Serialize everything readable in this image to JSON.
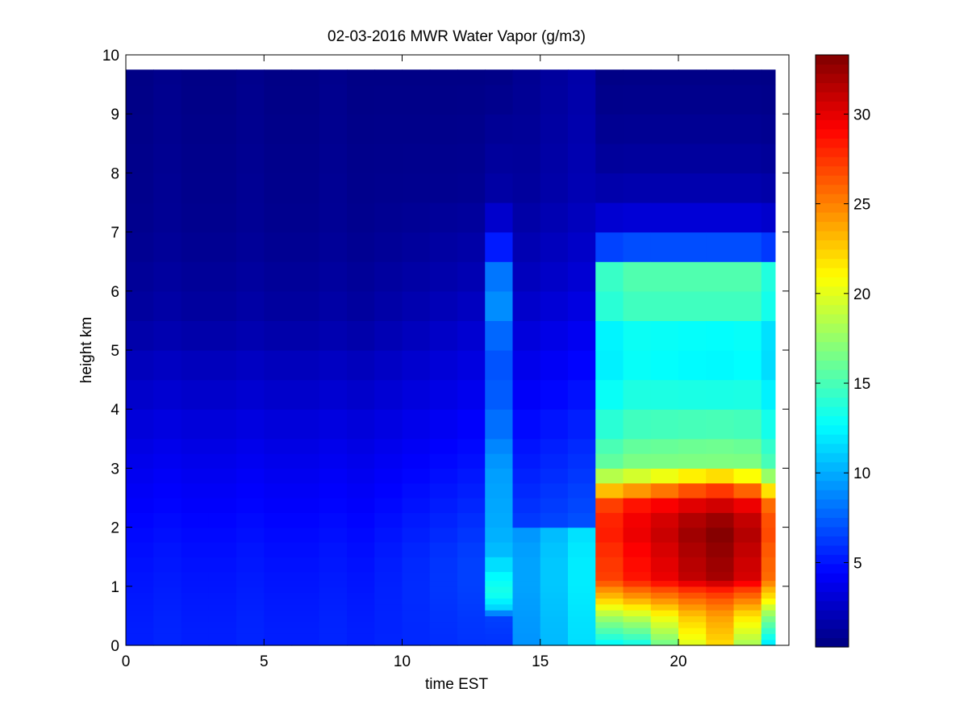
{
  "chart_data": {
    "type": "heatmap",
    "title": "02-03-2016 MWR Water Vapor (g/m3)",
    "xlabel": "time EST",
    "ylabel": "height km",
    "xlim": [
      0,
      24
    ],
    "ylim": [
      0,
      10
    ],
    "xticks": [
      0,
      5,
      10,
      15,
      20
    ],
    "yticks": [
      0,
      1,
      2,
      3,
      4,
      5,
      6,
      7,
      8,
      9,
      10
    ],
    "colormap": "jet",
    "colorbar": {
      "range": [
        0.3,
        33.3
      ],
      "ticks": [
        5,
        10,
        15,
        20,
        25,
        30
      ]
    },
    "data_extent": {
      "x": [
        0,
        23.5
      ],
      "y": [
        0,
        9.75
      ]
    },
    "time_bins": [
      0,
      1,
      2,
      3,
      4,
      5,
      6,
      7,
      8,
      9,
      10,
      11,
      12,
      13,
      14,
      15,
      16,
      17,
      18,
      19,
      20,
      21,
      22,
      23
    ],
    "height_levels_km": [
      0,
      0.1,
      0.2,
      0.3,
      0.4,
      0.5,
      0.6,
      0.7,
      0.8,
      0.9,
      1.0,
      1.1,
      1.25,
      1.5,
      1.75,
      2.0,
      2.25,
      2.5,
      2.75,
      3.0,
      3.25,
      3.5,
      4.0,
      4.5,
      5.0,
      5.5,
      6.0,
      6.5,
      7.0,
      7.5,
      8.0,
      8.5,
      9.0,
      9.5
    ],
    "profile_keys": {
      "base_early": {
        "z": [
          0,
          0.5,
          1.0,
          1.5,
          2.0,
          3.0,
          4.0,
          4.7,
          5.5,
          7.0,
          9.75
        ],
        "v": [
          5.4,
          5.3,
          5.1,
          4.9,
          4.6,
          3.9,
          3.0,
          2.3,
          1.4,
          0.8,
          0.5
        ]
      },
      "bin_12": {
        "z": [
          0,
          0.5,
          1.0,
          1.5,
          2.0,
          3.0,
          4.0,
          5.0,
          6.0,
          7.0,
          7.7,
          9.75
        ],
        "v": [
          6.0,
          6.2,
          6.5,
          6.5,
          6.0,
          5.0,
          4.1,
          3.2,
          2.1,
          1.4,
          0.9,
          0.5
        ]
      },
      "bin_13": {
        "z": [
          0,
          0.5,
          0.6,
          0.9,
          1.2,
          1.6,
          2.0,
          3.0,
          4.0,
          5.0,
          5.5,
          6.0,
          6.5,
          7.0,
          7.7,
          9.75
        ],
        "v": [
          6.0,
          6.5,
          11.0,
          13.5,
          12.5,
          10.5,
          10.0,
          9.5,
          7.5,
          7.0,
          8.5,
          9.5,
          7.0,
          3.5,
          1.5,
          0.5
        ]
      },
      "bin_18": {
        "z": [
          0,
          0.5,
          0.8,
          1.0,
          1.1,
          1.5,
          2.0,
          2.4,
          2.8,
          3.0,
          3.5,
          4.0,
          5.0,
          5.5,
          6.0,
          6.5,
          6.7,
          7.0,
          7.5,
          8.0,
          8.8,
          9.75
        ],
        "v": [
          13.0,
          19.0,
          24.0,
          26.5,
          28.5,
          29.0,
          30.0,
          28.5,
          21.0,
          17.0,
          15.5,
          14.0,
          12.5,
          13.5,
          16.0,
          14.5,
          7.5,
          4.0,
          2.2,
          1.4,
          0.9,
          0.5
        ]
      },
      "bin_21": {
        "z": [
          0,
          0.5,
          0.8,
          1.0,
          1.1,
          1.5,
          2.0,
          2.4,
          2.8,
          3.0,
          3.5,
          4.0,
          5.0,
          5.5,
          6.0,
          6.5,
          6.7,
          7.0,
          7.5,
          8.0,
          8.8,
          9.75
        ],
        "v": [
          22.0,
          24.0,
          26.5,
          29.0,
          32.0,
          32.5,
          33.3,
          30.5,
          25.0,
          17.0,
          16.0,
          14.0,
          12.0,
          13.5,
          16.0,
          14.5,
          7.5,
          4.0,
          2.2,
          1.4,
          0.9,
          0.5
        ]
      }
    }
  }
}
